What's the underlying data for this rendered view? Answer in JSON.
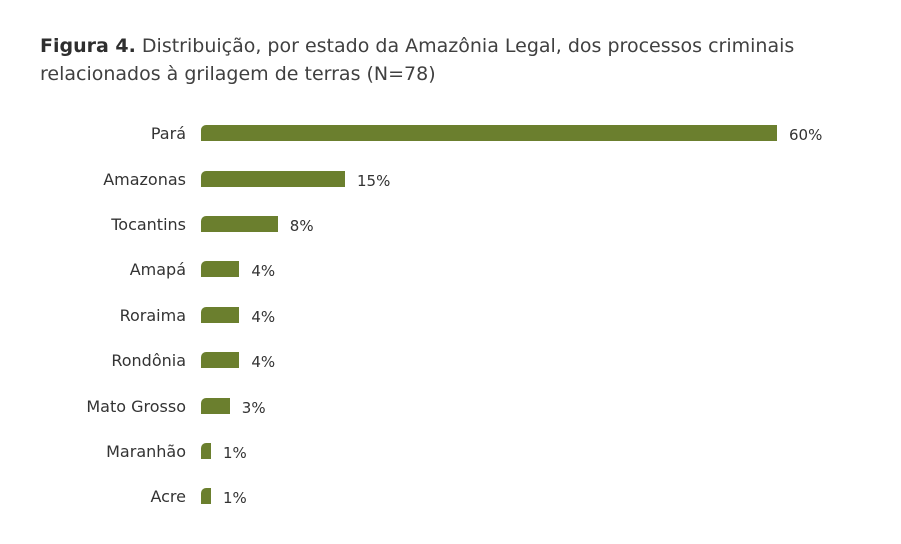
{
  "figure": {
    "title_bold": "Figura 4.",
    "title_rest": " Distribuição, por estado da Amazônia Legal, dos processos criminais relacionados à grilagem de terras (N=78)"
  },
  "colors": {
    "bar": "#6b7f2e"
  },
  "chart_data": {
    "type": "bar",
    "orientation": "horizontal",
    "title": "Figura 4. Distribuição, por estado da Amazônia Legal, dos processos criminais relacionados à grilagem de terras (N=78)",
    "categories": [
      "Pará",
      "Amazonas",
      "Tocantins",
      "Amapá",
      "Roraima",
      "Rondônia",
      "Mato Grosso",
      "Maranhão",
      "Acre"
    ],
    "values": [
      60,
      15,
      8,
      4,
      4,
      4,
      3,
      1,
      1
    ],
    "labels": [
      "60%",
      "15%",
      "8%",
      "4%",
      "4%",
      "4%",
      "3%",
      "1%",
      "1%"
    ],
    "xlabel": "",
    "ylabel": "",
    "unit": "%",
    "grid": false,
    "legend": false
  }
}
